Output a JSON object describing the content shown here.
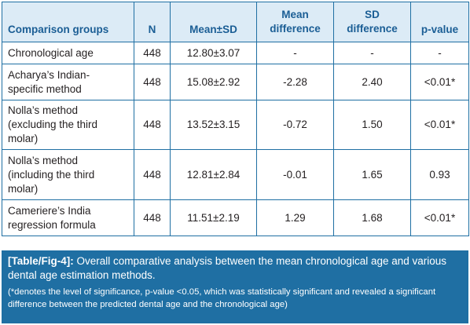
{
  "table": {
    "headers": {
      "group": "Comparison groups",
      "n": "N",
      "mean_sd": "Mean±SD",
      "mean_diff": [
        "Mean",
        "difference"
      ],
      "sd_diff": [
        "SD",
        "difference"
      ],
      "p_value": "p-value"
    },
    "rows": [
      {
        "group": [
          "Chronological age"
        ],
        "n": "448",
        "mean_sd": "12.80±3.07",
        "mean_diff": "-",
        "sd_diff": "-",
        "p_value": "-"
      },
      {
        "group": [
          "Acharya’s Indian-",
          "specific method"
        ],
        "n": "448",
        "mean_sd": "15.08±2.92",
        "mean_diff": "-2.28",
        "sd_diff": "2.40",
        "p_value": "<0.01*"
      },
      {
        "group": [
          "Nolla’s method",
          "(excluding the third",
          "molar)"
        ],
        "n": "448",
        "mean_sd": "13.52±3.15",
        "mean_diff": "-0.72",
        "sd_diff": "1.50",
        "p_value": "<0.01*"
      },
      {
        "group": [
          "Nolla’s method",
          "(including the third",
          "molar)"
        ],
        "n": "448",
        "mean_sd": "12.81±2.84",
        "mean_diff": "-0.01",
        "sd_diff": "1.65",
        "p_value": "0.93"
      },
      {
        "group": [
          "Cameriere’s India",
          "regression formula"
        ],
        "n": "448",
        "mean_sd": "11.51±2.19",
        "mean_diff": "1.29",
        "sd_diff": "1.68",
        "p_value": "<0.01*"
      }
    ]
  },
  "caption": {
    "tag": "[Table/Fig-4]:",
    "text": " Overall comparative analysis between the mean chronological age and various dental age estimation methods.",
    "note": "(*denotes the level of significance, p-value <0.05, which was statistically significant and revealed a significant difference between the predicted dental age and the chronological age)"
  },
  "colors": {
    "header_bg": "#dcebf6",
    "header_text": "#1b5e95",
    "border": "#1f6fa3",
    "caption_bg": "#1f6fa3",
    "caption_text": "#ffffff"
  }
}
